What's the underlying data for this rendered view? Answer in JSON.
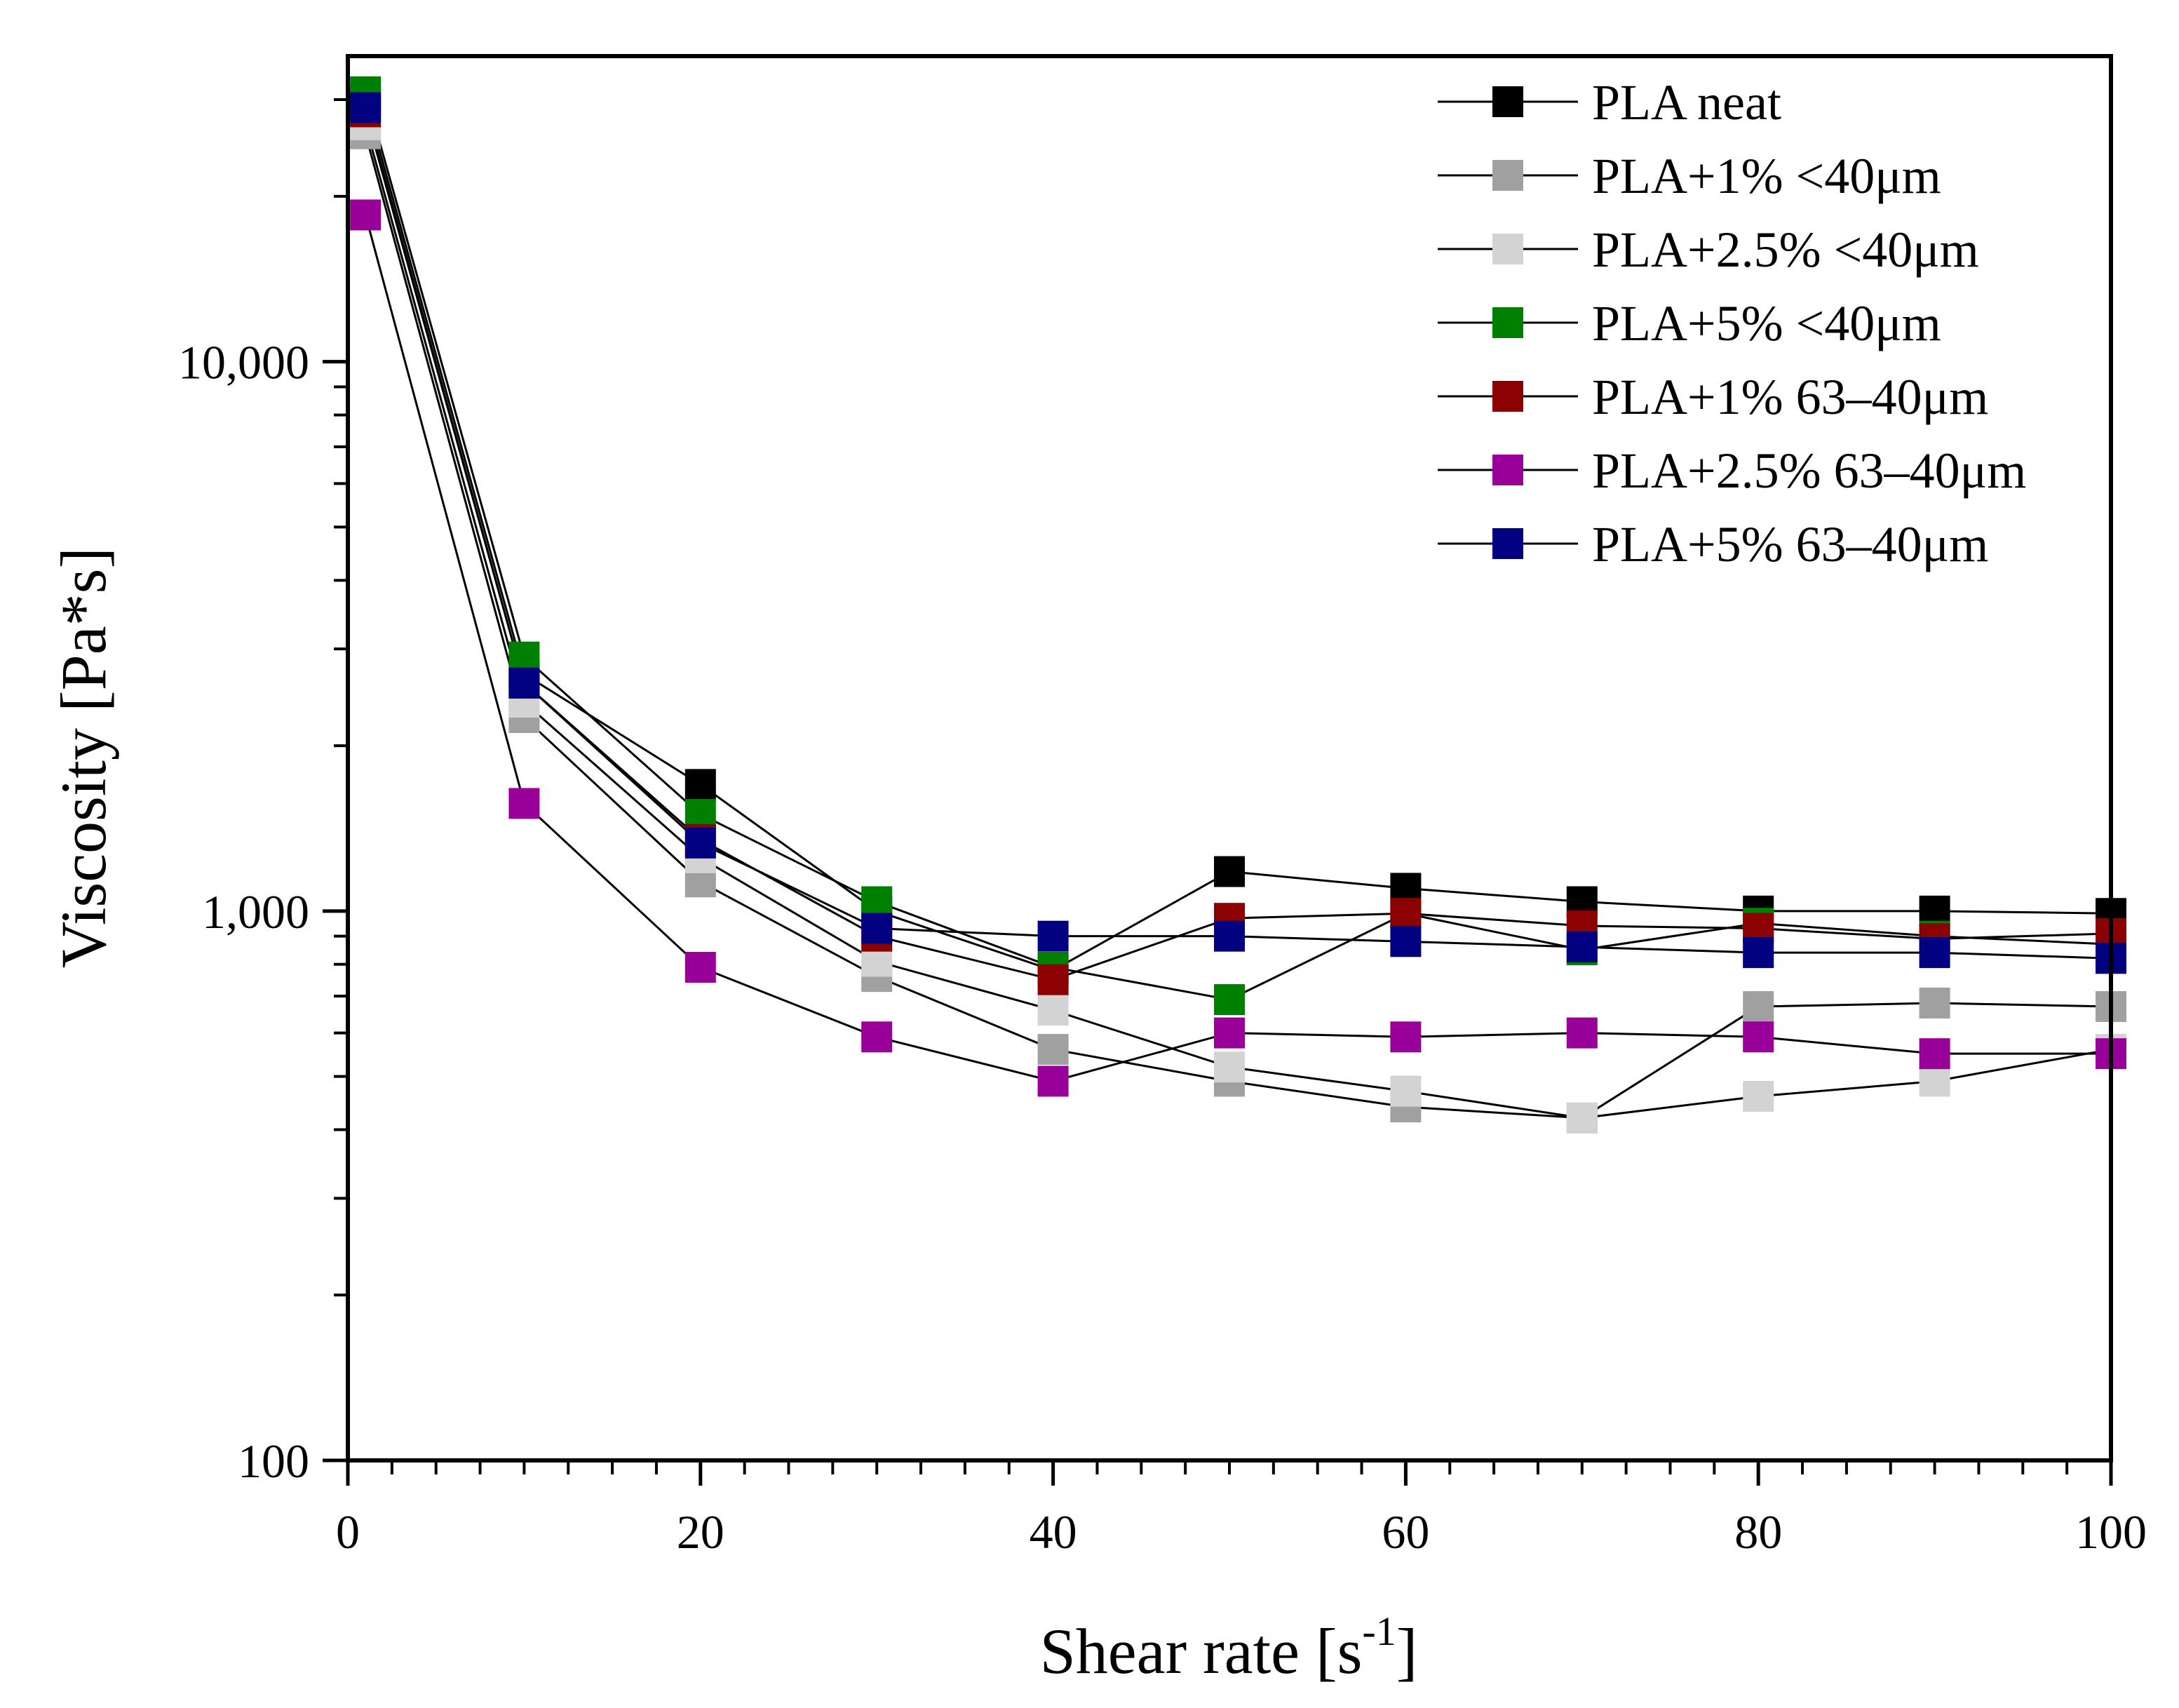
{
  "chart_data": {
    "type": "line",
    "xlabel": "Shear rate [s",
    "xlabel_sup": "-1",
    "xlabel_end": "]",
    "ylabel": "Viscosity [Pa*s]",
    "x_scale": "linear",
    "y_scale": "log",
    "xlim": [
      0,
      100
    ],
    "ylim": [
      100,
      36000
    ],
    "x_ticks": [
      0,
      20,
      40,
      60,
      80,
      100
    ],
    "x_tick_labels": [
      "0",
      "20",
      "40",
      "60",
      "80",
      "100"
    ],
    "y_ticks": [
      100,
      1000,
      10000
    ],
    "y_tick_labels": [
      "100",
      "1,000",
      "10,000"
    ],
    "legend_position": "top-right",
    "x": [
      1,
      10,
      20,
      30,
      40,
      50,
      60,
      70,
      80,
      90,
      100
    ],
    "series": [
      {
        "name": "PLA neat",
        "color": "#000000",
        "values": [
          30000,
          2700,
          1700,
          1000,
          780,
          1180,
          1100,
          1040,
          1000,
          1000,
          990
        ]
      },
      {
        "name": "PLA+1% <40μm",
        "color": "#a0a0a0",
        "values": [
          26000,
          2250,
          1130,
          760,
          560,
          490,
          440,
          420,
          670,
          680,
          670
        ]
      },
      {
        "name": "PLA+2.5% <40μm",
        "color": "#d3d3d3",
        "values": [
          27000,
          2400,
          1250,
          810,
          660,
          520,
          470,
          420,
          460,
          490,
          560
        ]
      },
      {
        "name": "PLA+5% <40μm",
        "color": "#008000",
        "values": [
          31000,
          2900,
          1500,
          1040,
          790,
          690,
          990,
          850,
          950,
          900,
          870
        ]
      },
      {
        "name": "PLA+1% 63–40μm",
        "color": "#8b0000",
        "values": [
          28500,
          2600,
          1350,
          900,
          750,
          970,
          990,
          940,
          930,
          890,
          910
        ]
      },
      {
        "name": "PLA+2.5% 63–40μm",
        "color": "#990099",
        "values": [
          18500,
          1570,
          790,
          590,
          490,
          600,
          590,
          600,
          590,
          550,
          550
        ]
      },
      {
        "name": "PLA+5% 63–40μm",
        "color": "#000080",
        "values": [
          29000,
          2600,
          1330,
          930,
          900,
          900,
          880,
          860,
          840,
          840,
          820
        ]
      }
    ]
  }
}
